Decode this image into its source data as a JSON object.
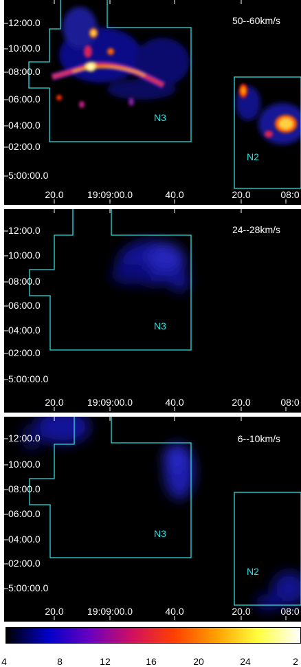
{
  "panels": [
    {
      "velocity_label": "50--60km/s",
      "regions": [
        "N3",
        "N2"
      ],
      "y_ticks": [
        "12:00.0",
        "10:00.0",
        "08:00.0",
        "06:00.0",
        "04:00.0",
        "02:00.0",
        "5:00:00.0"
      ],
      "x_ticks": [
        "20.0",
        "19:09:00.0",
        "40.0",
        "20.0",
        "08:0"
      ]
    },
    {
      "velocity_label": "24--28km/s",
      "regions": [
        "N3"
      ],
      "y_ticks": [
        "12:00.0",
        "10:00.0",
        "08:00.0",
        "06:00.0",
        "04:00.0",
        "02:00.0",
        "5:00:00.0"
      ],
      "x_ticks": [
        "20.0",
        "19:09:00.0",
        "40.0",
        "20.0",
        "08:0"
      ]
    },
    {
      "velocity_label": "6--10km/s",
      "regions": [
        "N3",
        "N2"
      ],
      "y_ticks": [
        "12:00.0",
        "10:00.0",
        "08:00.0",
        "06:00.0",
        "04:00.0",
        "02:00.0",
        "5:00:00.0"
      ],
      "x_ticks": [
        "20.0",
        "19:09:00.0",
        "40.0",
        "20.0",
        "08:0"
      ]
    }
  ],
  "colorbar": {
    "ticks": [
      "4",
      "8",
      "12",
      "16",
      "20",
      "24",
      "2"
    ],
    "colors": [
      "#000000",
      "#0000c8",
      "#6a00c0",
      "#d01060",
      "#ff4000",
      "#ffa000",
      "#ffff40",
      "#ffffff"
    ]
  },
  "colors": {
    "region_outline": "#28e0e0",
    "background": "#000000"
  }
}
